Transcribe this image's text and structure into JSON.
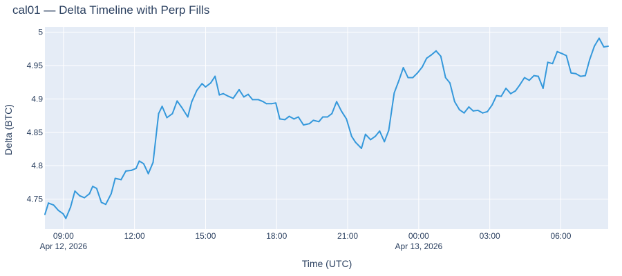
{
  "chart_data": {
    "type": "line",
    "title": "cal01 — Delta Timeline with Perp Fills",
    "xlabel": "Time (UTC)",
    "ylabel": "Delta (BTC)",
    "xlim": [
      "2026-04-12 08:13",
      "2026-04-13 08:00"
    ],
    "ylim": [
      4.705,
      5.008
    ],
    "grid": true,
    "legend": "none",
    "colors": {
      "background": "#e5ecf6",
      "grid": "#ffffff",
      "line": "#3498db",
      "text": "#2a3f5f"
    },
    "x_ticks": [
      {
        "t": "2026-04-12 09:00",
        "label": "09:00",
        "sublabel": "Apr 12, 2026"
      },
      {
        "t": "2026-04-12 12:00",
        "label": "12:00",
        "sublabel": ""
      },
      {
        "t": "2026-04-12 15:00",
        "label": "15:00",
        "sublabel": ""
      },
      {
        "t": "2026-04-12 18:00",
        "label": "18:00",
        "sublabel": ""
      },
      {
        "t": "2026-04-12 21:00",
        "label": "21:00",
        "sublabel": ""
      },
      {
        "t": "2026-04-13 00:00",
        "label": "00:00",
        "sublabel": "Apr 13, 2026"
      },
      {
        "t": "2026-04-13 03:00",
        "label": "03:00",
        "sublabel": ""
      },
      {
        "t": "2026-04-13 06:00",
        "label": "06:00",
        "sublabel": ""
      }
    ],
    "y_ticks": [
      4.75,
      4.8,
      4.85,
      4.9,
      4.95,
      5
    ],
    "y_tick_labels": [
      "4.75",
      "4.8",
      "4.85",
      "4.9",
      "4.95",
      "5"
    ],
    "series": [
      {
        "x": [
          "2026-04-12 08:13",
          "2026-04-12 08:22",
          "2026-04-12 08:35",
          "2026-04-12 08:47",
          "2026-04-12 08:59",
          "2026-04-12 09:06",
          "2026-04-12 09:18",
          "2026-04-12 09:29",
          "2026-04-12 09:41",
          "2026-04-12 09:53",
          "2026-04-12 10:06",
          "2026-04-12 10:14",
          "2026-04-12 10:24",
          "2026-04-12 10:36",
          "2026-04-12 10:47",
          "2026-04-12 11:01",
          "2026-04-12 11:11",
          "2026-04-12 11:26",
          "2026-04-12 11:38",
          "2026-04-12 11:52",
          "2026-04-12 12:04",
          "2026-04-12 12:12",
          "2026-04-12 12:23",
          "2026-04-12 12:35",
          "2026-04-12 12:47",
          "2026-04-12 13:01",
          "2026-04-12 13:10",
          "2026-04-12 13:22",
          "2026-04-12 13:36",
          "2026-04-12 13:48",
          "2026-04-12 14:00",
          "2026-04-12 14:15",
          "2026-04-12 14:25",
          "2026-04-12 14:38",
          "2026-04-12 14:51",
          "2026-04-12 15:00",
          "2026-04-12 15:13",
          "2026-04-12 15:24",
          "2026-04-12 15:35",
          "2026-04-12 15:45",
          "2026-04-12 15:58",
          "2026-04-12 16:10",
          "2026-04-12 16:25",
          "2026-04-12 16:37",
          "2026-04-12 16:48",
          "2026-04-12 16:59",
          "2026-04-12 17:14",
          "2026-04-12 17:26",
          "2026-04-12 17:34",
          "2026-04-12 17:48",
          "2026-04-12 17:58",
          "2026-04-12 18:08",
          "2026-04-12 18:21",
          "2026-04-12 18:32",
          "2026-04-12 18:44",
          "2026-04-12 18:55",
          "2026-04-12 19:08",
          "2026-04-12 19:23",
          "2026-04-12 19:33",
          "2026-04-12 19:47",
          "2026-04-12 19:57",
          "2026-04-12 20:09",
          "2026-04-12 20:20",
          "2026-04-12 20:32",
          "2026-04-12 20:44",
          "2026-04-12 20:57",
          "2026-04-12 21:10",
          "2026-04-12 21:20",
          "2026-04-12 21:35",
          "2026-04-12 21:45",
          "2026-04-12 21:58",
          "2026-04-12 22:10",
          "2026-04-12 22:21",
          "2026-04-12 22:33",
          "2026-04-12 22:44",
          "2026-04-12 22:58",
          "2026-04-12 23:10",
          "2026-04-12 23:21",
          "2026-04-12 23:33",
          "2026-04-12 23:45",
          "2026-04-12 23:57",
          "2026-04-13 00:09",
          "2026-04-13 00:20",
          "2026-04-13 00:32",
          "2026-04-13 00:44",
          "2026-04-13 00:56",
          "2026-04-13 01:08",
          "2026-04-13 01:19",
          "2026-04-13 01:31",
          "2026-04-13 01:43",
          "2026-04-13 01:55",
          "2026-04-13 02:07",
          "2026-04-13 02:18",
          "2026-04-13 02:30",
          "2026-04-13 02:42",
          "2026-04-13 02:54",
          "2026-04-13 03:06",
          "2026-04-13 03:17",
          "2026-04-13 03:29",
          "2026-04-13 03:41",
          "2026-04-13 03:53",
          "2026-04-13 04:05",
          "2026-04-13 04:16",
          "2026-04-13 04:28",
          "2026-04-13 04:40",
          "2026-04-13 04:52",
          "2026-04-13 05:03",
          "2026-04-13 05:15",
          "2026-04-13 05:27",
          "2026-04-13 05:39",
          "2026-04-13 05:51",
          "2026-04-13 06:03",
          "2026-04-13 06:14",
          "2026-04-13 06:26",
          "2026-04-13 06:38",
          "2026-04-13 06:50",
          "2026-04-13 07:02",
          "2026-04-13 07:13",
          "2026-04-13 07:25",
          "2026-04-13 07:37",
          "2026-04-13 07:49",
          "2026-04-13 08:00"
        ],
        "y": [
          4.727,
          4.744,
          4.741,
          4.733,
          4.728,
          4.721,
          4.738,
          4.762,
          4.755,
          4.752,
          4.758,
          4.769,
          4.766,
          4.745,
          4.742,
          4.758,
          4.781,
          4.779,
          4.792,
          4.793,
          4.796,
          4.807,
          4.803,
          4.788,
          4.805,
          4.878,
          4.889,
          4.872,
          4.878,
          4.897,
          4.887,
          4.873,
          4.896,
          4.913,
          4.923,
          4.918,
          4.924,
          4.934,
          4.906,
          4.908,
          4.904,
          4.901,
          4.914,
          4.903,
          4.907,
          4.899,
          4.899,
          4.896,
          4.893,
          4.893,
          4.894,
          4.87,
          4.869,
          4.874,
          4.87,
          4.873,
          4.861,
          4.863,
          4.868,
          4.866,
          4.873,
          4.873,
          4.878,
          4.896,
          4.882,
          4.87,
          4.844,
          4.835,
          4.826,
          4.847,
          4.839,
          4.844,
          4.852,
          4.836,
          4.853,
          4.909,
          4.928,
          4.947,
          4.932,
          4.932,
          4.939,
          4.948,
          4.961,
          4.966,
          4.972,
          4.964,
          4.932,
          4.924,
          4.896,
          4.884,
          4.879,
          4.888,
          4.882,
          4.883,
          4.879,
          4.881,
          4.891,
          4.905,
          4.904,
          4.916,
          4.908,
          4.912,
          4.921,
          4.932,
          4.928,
          4.935,
          4.934,
          4.916,
          4.955,
          4.953,
          4.971,
          4.968,
          4.965,
          4.939,
          4.938,
          4.934,
          4.935,
          4.959,
          4.979,
          4.991,
          4.978,
          4.979
        ]
      }
    ]
  }
}
